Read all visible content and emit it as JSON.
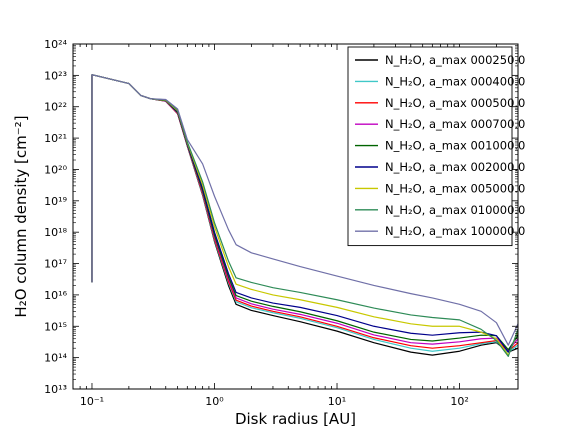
{
  "chart_data": {
    "type": "line",
    "xlabel": "Disk radius [AU]",
    "ylabel": "H₂O column density [cm⁻²]",
    "xscale": "log",
    "yscale": "log",
    "xlim": [
      0.07,
      300
    ],
    "ylim": [
      10000000000000.0,
      1e+24
    ],
    "x_tick_labels": [
      "10⁻¹",
      "10⁰",
      "10¹",
      "10²"
    ],
    "y_tick_labels": [
      "10¹³",
      "10¹⁴",
      "10¹⁵",
      "10¹⁶",
      "10¹⁷",
      "10¹⁸",
      "10¹⁹",
      "10²⁰",
      "10²¹",
      "10²²",
      "10²³",
      "10²⁴"
    ],
    "legend_position": "upper-right",
    "series": [
      {
        "name": "N_H₂O, a_max 000250.0",
        "color": "#000000",
        "x": [
          0.1,
          0.1,
          0.2,
          0.25,
          0.3,
          0.4,
          0.5,
          0.6,
          0.8,
          1.0,
          1.3,
          1.5,
          2,
          3,
          5,
          10,
          20,
          40,
          60,
          100,
          150,
          200,
          250,
          300
        ],
        "y": [
          2.5e+16,
          1.05e+23,
          5.5e+22,
          2.3e+22,
          1.8e+22,
          1.5e+22,
          6e+21,
          5.5e+20,
          1.5e+19,
          5e+17,
          2e+16,
          5000000000000000.0,
          3200000000000000.0,
          2200000000000000.0,
          1400000000000000.0,
          700000000000000.0,
          300000000000000.0,
          150000000000000.0,
          120000000000000.0,
          160000000000000.0,
          250000000000000.0,
          300000000000000.0,
          150000000000000.0,
          200000000000000.0
        ]
      },
      {
        "name": "N_H₂O, a_max 000400.0",
        "color": "#40c8c8",
        "x": [
          0.1,
          0.1,
          0.2,
          0.25,
          0.3,
          0.4,
          0.5,
          0.6,
          0.8,
          1.0,
          1.3,
          1.5,
          2,
          3,
          5,
          10,
          20,
          40,
          60,
          100,
          150,
          200,
          250,
          300
        ],
        "y": [
          2.5e+16,
          1.05e+23,
          5.5e+22,
          2.3e+22,
          1.8e+22,
          1.5e+22,
          6e+21,
          5.7e+20,
          1.6e+19,
          5.5e+17,
          2.4e+16,
          6000000000000000.0,
          3900000000000000.0,
          2700000000000000.0,
          1800000000000000.0,
          900000000000000.0,
          380000000000000.0,
          200000000000000.0,
          160000000000000.0,
          200000000000000.0,
          280000000000000.0,
          320000000000000.0,
          150000000000000.0,
          250000000000000.0
        ]
      },
      {
        "name": "N_H₂O, a_max 000500.0",
        "color": "#ff0000",
        "x": [
          0.1,
          0.1,
          0.2,
          0.25,
          0.3,
          0.4,
          0.5,
          0.6,
          0.8,
          1.0,
          1.3,
          1.5,
          2,
          3,
          5,
          10,
          20,
          40,
          60,
          100,
          150,
          200,
          250,
          300
        ],
        "y": [
          2.5e+16,
          1.05e+23,
          5.5e+22,
          2.3e+22,
          1.8e+22,
          1.5e+22,
          6e+21,
          5.8e+20,
          1.7e+19,
          6e+17,
          2.7e+16,
          6800000000000000.0,
          4400000000000000.0,
          3000000000000000.0,
          2000000000000000.0,
          1000000000000000.0,
          430000000000000.0,
          240000000000000.0,
          200000000000000.0,
          240000000000000.0,
          300000000000000.0,
          350000000000000.0,
          160000000000000.0,
          300000000000000.0
        ]
      },
      {
        "name": "N_H₂O, a_max 000700.0",
        "color": "#c000c0",
        "x": [
          0.1,
          0.1,
          0.2,
          0.25,
          0.3,
          0.4,
          0.5,
          0.6,
          0.8,
          1.0,
          1.3,
          1.5,
          2,
          3,
          5,
          10,
          20,
          40,
          60,
          100,
          150,
          200,
          250,
          300
        ],
        "y": [
          2.5e+16,
          1.05e+23,
          5.5e+22,
          2.3e+22,
          1.8e+22,
          1.5e+22,
          6.2e+21,
          6e+20,
          1.9e+19,
          7e+17,
          3.2e+16,
          8000000000000000.0,
          5200000000000000.0,
          3500000000000000.0,
          2400000000000000.0,
          1250000000000000.0,
          530000000000000.0,
          300000000000000.0,
          270000000000000.0,
          320000000000000.0,
          400000000000000.0,
          420000000000000.0,
          170000000000000.0,
          400000000000000.0
        ]
      },
      {
        "name": "N_H₂O, a_max 001000.0",
        "color": "#006400",
        "x": [
          0.1,
          0.1,
          0.2,
          0.25,
          0.3,
          0.4,
          0.5,
          0.6,
          0.8,
          1.0,
          1.3,
          1.5,
          2,
          3,
          5,
          10,
          20,
          40,
          60,
          100,
          150,
          200,
          250,
          300
        ],
        "y": [
          2.5e+16,
          1.05e+23,
          5.5e+22,
          2.3e+22,
          1.8e+22,
          1.55e+22,
          6.5e+21,
          6.2e+20,
          2.1e+19,
          8e+17,
          3.8e+16,
          9500000000000000.0,
          6300000000000000.0,
          4300000000000000.0,
          2900000000000000.0,
          1500000000000000.0,
          650000000000000.0,
          380000000000000.0,
          340000000000000.0,
          420000000000000.0,
          520000000000000.0,
          500000000000000.0,
          180000000000000.0,
          500000000000000.0
        ]
      },
      {
        "name": "N_H₂O, a_max 002000.0",
        "color": "#00008b",
        "x": [
          0.1,
          0.1,
          0.2,
          0.25,
          0.3,
          0.4,
          0.5,
          0.6,
          0.8,
          1.0,
          1.3,
          1.5,
          2,
          3,
          5,
          10,
          20,
          40,
          60,
          100,
          150,
          200,
          250,
          300
        ],
        "y": [
          2.5e+16,
          1.05e+23,
          5.5e+22,
          2.3e+22,
          1.8e+22,
          1.6e+22,
          7e+21,
          6.5e+20,
          2.5e+19,
          1e+18,
          4.8e+16,
          1.2e+16,
          8000000000000000.0,
          5500000000000000.0,
          4000000000000000.0,
          2200000000000000.0,
          1000000000000000.0,
          600000000000000.0,
          520000000000000.0,
          620000000000000.0,
          650000000000000.0,
          500000000000000.0,
          150000000000000.0,
          600000000000000.0
        ]
      },
      {
        "name": "N_H₂O, a_max 005000.0",
        "color": "#c8c800",
        "x": [
          0.1,
          0.1,
          0.2,
          0.25,
          0.3,
          0.4,
          0.5,
          0.6,
          0.8,
          1.0,
          1.3,
          1.5,
          2,
          3,
          5,
          10,
          20,
          40,
          60,
          100,
          150,
          200,
          250,
          300
        ],
        "y": [
          2.5e+16,
          1.05e+23,
          5.5e+22,
          2.3e+22,
          1.8e+22,
          1.6e+22,
          7.5e+21,
          7e+20,
          3.2e+19,
          1.5e+18,
          8e+16,
          2.2e+16,
          1.5e+16,
          1e+16,
          7000000000000000.0,
          4000000000000000.0,
          2000000000000000.0,
          1200000000000000.0,
          1000000000000000.0,
          1000000000000000.0,
          650000000000000.0,
          400000000000000.0,
          120000000000000.0,
          700000000000000.0
        ]
      },
      {
        "name": "N_H₂O, a_max 010000.0",
        "color": "#2e8b57",
        "x": [
          0.1,
          0.1,
          0.2,
          0.25,
          0.3,
          0.4,
          0.5,
          0.6,
          0.8,
          1.0,
          1.3,
          1.5,
          2,
          3,
          5,
          10,
          20,
          40,
          60,
          100,
          150,
          200,
          250,
          300
        ],
        "y": [
          2.5e+16,
          1.05e+23,
          5.5e+22,
          2.3e+22,
          1.8e+22,
          1.65e+22,
          8e+21,
          7.5e+20,
          4e+19,
          2e+18,
          1.2e+17,
          3.5e+16,
          2.5e+16,
          1.7e+16,
          1.2e+16,
          7000000000000000.0,
          3800000000000000.0,
          2300000000000000.0,
          1900000000000000.0,
          1600000000000000.0,
          800000000000000.0,
          350000000000000.0,
          110000000000000.0,
          800000000000000.0
        ]
      },
      {
        "name": "N_H₂O, a_max 100000.0",
        "color": "#7070a8",
        "x": [
          0.1,
          0.1,
          0.2,
          0.25,
          0.3,
          0.4,
          0.5,
          0.6,
          0.8,
          1.0,
          1.3,
          1.5,
          2,
          3,
          5,
          10,
          20,
          40,
          60,
          100,
          150,
          200,
          250,
          300
        ],
        "y": [
          2.5e+16,
          1.05e+23,
          5.5e+22,
          2.3e+22,
          1.8e+22,
          1.7e+22,
          8.5e+21,
          9e+20,
          1.5e+20,
          1.4e+19,
          1.2e+18,
          4e+17,
          2.2e+17,
          1.4e+17,
          8e+16,
          4e+16,
          2e+16,
          1.1e+16,
          8000000000000000.0,
          5000000000000000.0,
          3000000000000000.0,
          1300000000000000.0,
          250000000000000.0,
          1200000000000000.0
        ]
      }
    ]
  }
}
